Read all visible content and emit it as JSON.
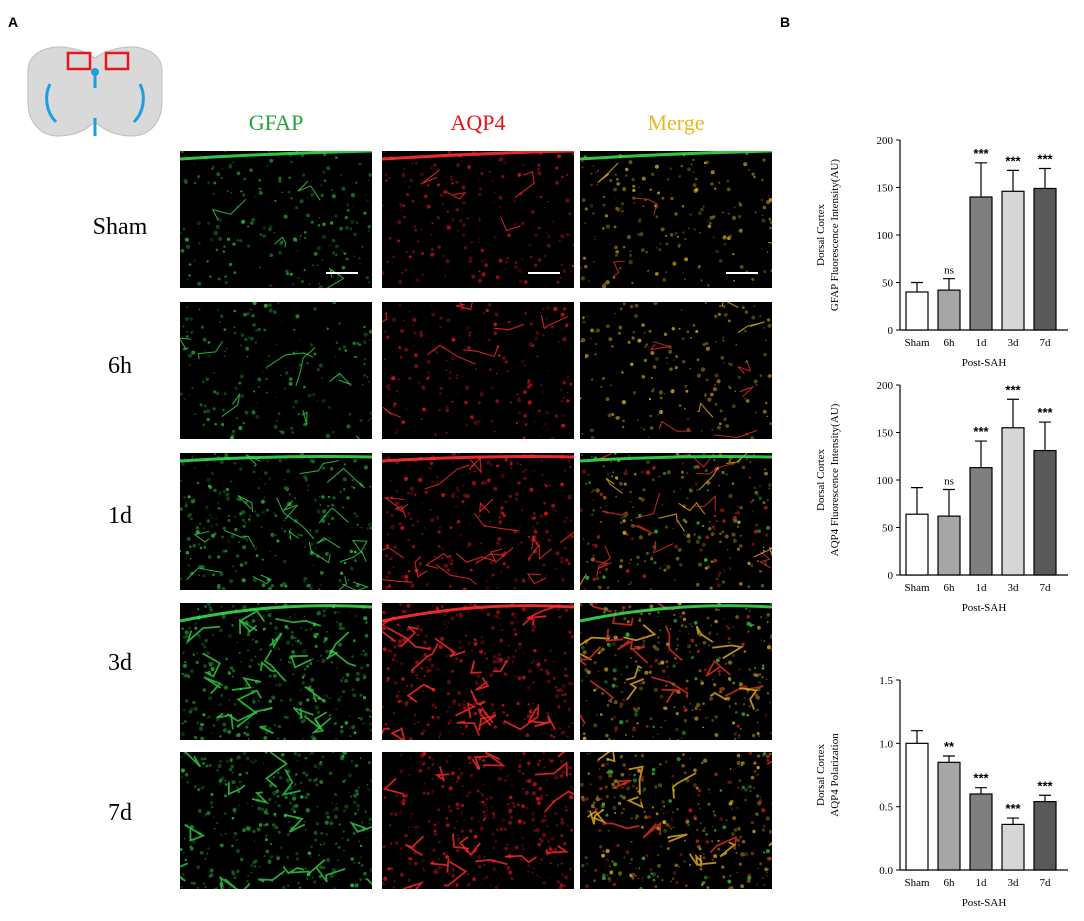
{
  "panels": {
    "a": "A",
    "b": "B"
  },
  "colors": {
    "gfap": "#22a33a",
    "aqp4": "#e8161a",
    "merge": "#e7b820"
  },
  "columns": [
    {
      "label": "GFAP",
      "color": "#22a33a"
    },
    {
      "label": "AQP4",
      "color": "#e8161a"
    },
    {
      "label": "Merge",
      "color": "#e7b820"
    }
  ],
  "rows": [
    "Sham",
    "6h",
    "1d",
    "3d",
    "7d"
  ],
  "chart_data": [
    {
      "type": "bar",
      "ylabel_line1": "Dorsal Cortex",
      "ylabel_line2": "GFAP Fluorescence Intensity(AU)",
      "xlabel": "Post-SAH",
      "categories": [
        "Sham",
        "6h",
        "1d",
        "3d",
        "7d"
      ],
      "values": [
        40,
        42,
        140,
        146,
        149
      ],
      "errors": [
        10,
        12,
        36,
        22,
        21
      ],
      "significance": [
        "",
        "ns",
        "***",
        "***",
        "***"
      ],
      "bar_colors": [
        "#ffffff",
        "#a6a6a6",
        "#7f7f7f",
        "#d6d6d6",
        "#595959"
      ],
      "ylim": [
        0,
        200
      ],
      "yticks": [
        "0",
        "50",
        "100",
        "150",
        "200"
      ]
    },
    {
      "type": "bar",
      "ylabel_line1": "Dorsal Cortex",
      "ylabel_line2": "AQP4 Fluorescence Intensity(AU)",
      "xlabel": "Post-SAH",
      "categories": [
        "Sham",
        "6h",
        "1d",
        "3d",
        "7d"
      ],
      "values": [
        64,
        62,
        113,
        155,
        131
      ],
      "errors": [
        28,
        28,
        28,
        30,
        30
      ],
      "significance": [
        "",
        "ns",
        "***",
        "***",
        "***"
      ],
      "bar_colors": [
        "#ffffff",
        "#a6a6a6",
        "#7f7f7f",
        "#d6d6d6",
        "#595959"
      ],
      "ylim": [
        0,
        200
      ],
      "yticks": [
        "0",
        "50",
        "100",
        "150",
        "200"
      ]
    },
    {
      "type": "bar",
      "ylabel_line1": "Dorsal Cortex",
      "ylabel_line2": "AQP4 Polarization",
      "xlabel": "Post-SAH",
      "categories": [
        "Sham",
        "6h",
        "1d",
        "3d",
        "7d"
      ],
      "values": [
        1.0,
        0.85,
        0.6,
        0.36,
        0.54
      ],
      "errors": [
        0.1,
        0.05,
        0.05,
        0.05,
        0.05
      ],
      "significance": [
        "",
        "**",
        "***",
        "***",
        "***"
      ],
      "bar_colors": [
        "#ffffff",
        "#a6a6a6",
        "#7f7f7f",
        "#d6d6d6",
        "#595959"
      ],
      "ylim": [
        0,
        1.5
      ],
      "yticks": [
        "0.0",
        "0.5",
        "1.0",
        "1.5"
      ]
    }
  ]
}
